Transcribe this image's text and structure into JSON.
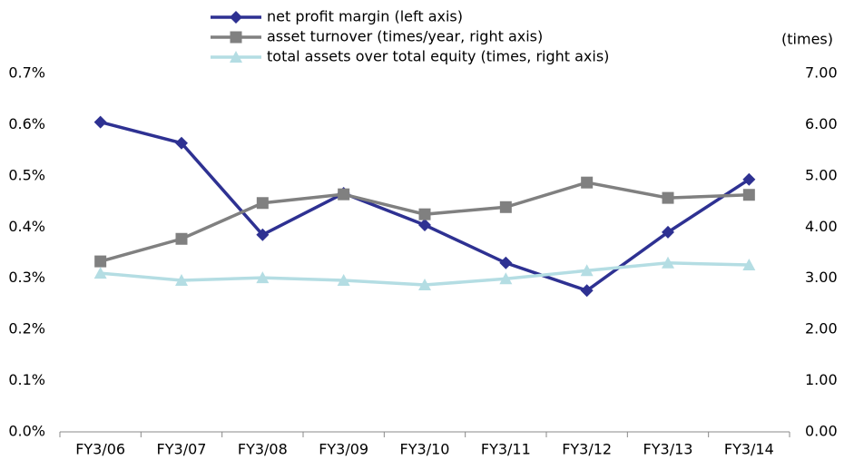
{
  "chart_data": {
    "type": "line",
    "categories": [
      "FY3/06",
      "FY3/07",
      "FY3/08",
      "FY3/09",
      "FY3/10",
      "FY3/11",
      "FY3/12",
      "FY3/13",
      "FY3/14"
    ],
    "y2_unit_label": "(times)",
    "legend": "top",
    "ylim": [
      0,
      0.7
    ],
    "yticks": [
      {
        "value": 0,
        "label": "0.0%"
      },
      {
        "value": 0.1,
        "label": "0.1%"
      },
      {
        "value": 0.2,
        "label": "0.2%"
      },
      {
        "value": 0.3,
        "label": "0.3%"
      },
      {
        "value": 0.4,
        "label": "0.4%"
      },
      {
        "value": 0.5,
        "label": "0.5%"
      },
      {
        "value": 0.6,
        "label": "0.6%"
      },
      {
        "value": 0.7,
        "label": "0.7%"
      }
    ],
    "y2lim": [
      0,
      7
    ],
    "y2ticks": [
      {
        "value": 0,
        "label": "0.00"
      },
      {
        "value": 1,
        "label": "1.00"
      },
      {
        "value": 2,
        "label": "2.00"
      },
      {
        "value": 3,
        "label": "3.00"
      },
      {
        "value": 4,
        "label": "4.00"
      },
      {
        "value": 5,
        "label": "5.00"
      },
      {
        "value": 6,
        "label": "6.00"
      },
      {
        "value": 7,
        "label": "7.00"
      }
    ],
    "grid": false,
    "series": [
      {
        "name": "net profit margin (left axis)",
        "color": "#2e3192",
        "marker": "diamond",
        "values": [
          0.605,
          0.564,
          0.385,
          0.466,
          0.404,
          0.33,
          0.276,
          0.39,
          0.493
        ]
      },
      {
        "name": "asset turnover (times/year, right axis)",
        "color": "#808080",
        "marker": "square",
        "axis": "y2",
        "values": [
          3.33,
          3.77,
          4.47,
          4.64,
          4.25,
          4.39,
          4.87,
          4.57,
          4.63
        ]
      },
      {
        "name": "total assets over total equity (times, right axis)",
        "color": "#b4dde3",
        "marker": "triangle",
        "axis": "y2",
        "values": [
          3.1,
          2.96,
          3.01,
          2.96,
          2.87,
          2.99,
          3.15,
          3.3,
          3.26
        ]
      }
    ]
  }
}
